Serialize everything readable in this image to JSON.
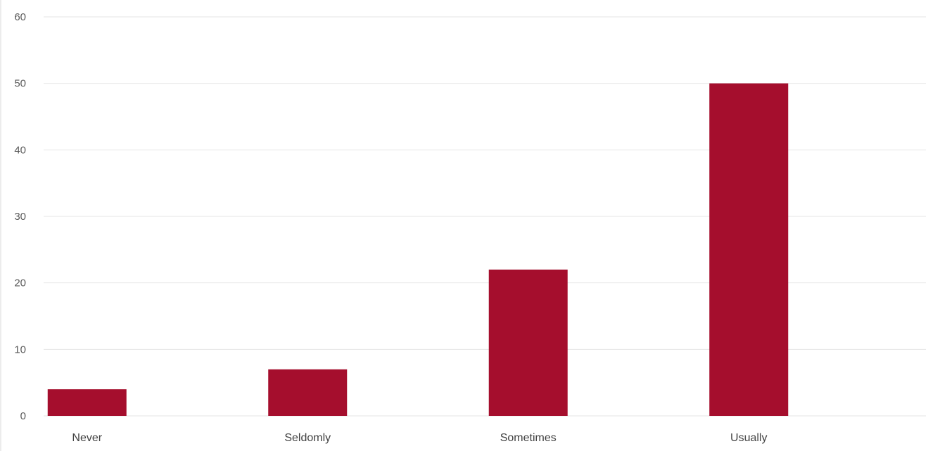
{
  "chart_data": {
    "type": "bar",
    "categories": [
      "Never",
      "Seldomly",
      "Sometimes",
      "Usually"
    ],
    "values": [
      4,
      7,
      22,
      50
    ],
    "title": "",
    "xlabel": "",
    "ylabel": "",
    "ylim": [
      0,
      60
    ],
    "yticks": [
      0,
      10,
      20,
      30,
      40,
      50,
      60
    ],
    "grid": true,
    "legend": "none",
    "bar_color": "#a50e2d",
    "grid_color": "#e6e6e6"
  }
}
